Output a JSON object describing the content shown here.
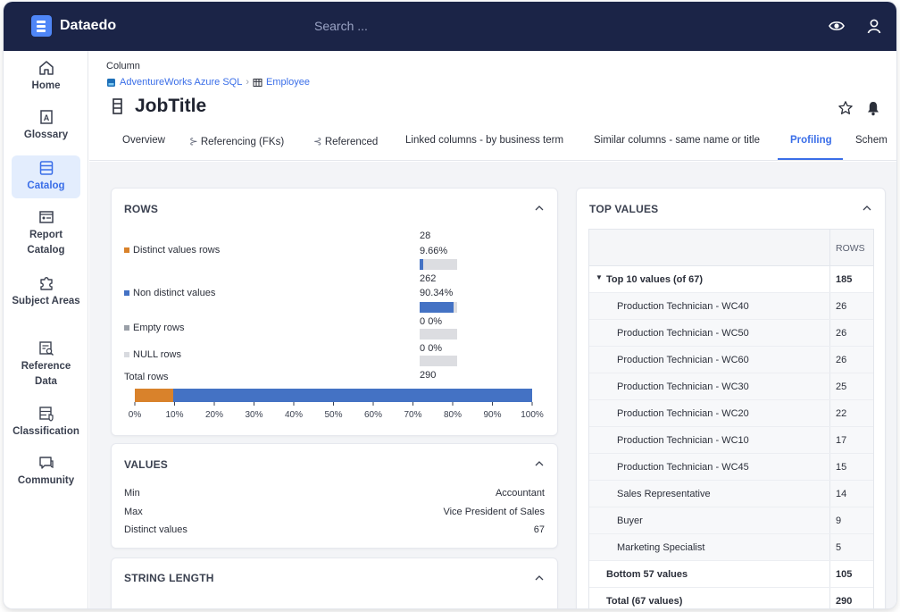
{
  "app": {
    "name": "Dataedo"
  },
  "search": {
    "placeholder": "Search ..."
  },
  "sidebar": {
    "items": [
      {
        "label": "Home",
        "icon": "home-icon"
      },
      {
        "label": "Glossary",
        "icon": "glossary-icon"
      },
      {
        "label": "Catalog",
        "icon": "catalog-icon"
      },
      {
        "label": "Report Catalog",
        "icon": "report-icon"
      },
      {
        "label": "Subject Areas",
        "icon": "puzzle-icon"
      },
      {
        "label": "Reference Data",
        "icon": "reference-data-icon"
      },
      {
        "label": "Classification",
        "icon": "classification-icon"
      },
      {
        "label": "Community",
        "icon": "chat-icon"
      }
    ],
    "active": "Catalog"
  },
  "page": {
    "object_type": "Column",
    "breadcrumb": [
      "AdventureWorks Azure SQL",
      "Employee"
    ],
    "title": "JobTitle"
  },
  "tabs": [
    "Overview",
    "Referencing (FKs)",
    "Referenced",
    "Linked columns - by business term",
    "Similar columns - same name or title",
    "Profiling",
    "Schem"
  ],
  "active_tab": "Profiling",
  "rows_card": {
    "title": "ROWS",
    "items": [
      {
        "label": "Distinct values rows",
        "count": "28",
        "pct": "9.66%",
        "fraction": 0.0966,
        "color": "#d9822b"
      },
      {
        "label": "Non distinct values",
        "count": "262",
        "pct": "90.34%",
        "fraction": 0.9034,
        "color": "#4472c4"
      },
      {
        "label": "Empty rows",
        "count": "0",
        "pct": "0%",
        "fraction": 0,
        "color": "#9aa0a8"
      },
      {
        "label": "NULL rows",
        "count": "0",
        "pct": "0%",
        "fraction": 0,
        "color": "#d8dadf"
      }
    ],
    "total_label": "Total rows",
    "total_value": "290",
    "axis_ticks": [
      "0%",
      "10%",
      "20%",
      "30%",
      "40%",
      "50%",
      "60%",
      "70%",
      "80%",
      "90%",
      "100%"
    ]
  },
  "values_card": {
    "title": "VALUES",
    "rows": [
      {
        "label": "Min",
        "value": "Accountant"
      },
      {
        "label": "Max",
        "value": "Vice President of Sales"
      },
      {
        "label": "Distinct values",
        "value": "67"
      }
    ]
  },
  "string_card": {
    "title": "STRING LENGTH"
  },
  "top_values": {
    "title": "TOP VALUES",
    "column_header": "ROWS",
    "group_label": "Top 10 values (of 67)",
    "group_value": "185",
    "rows": [
      {
        "name": "Production Technician - WC40",
        "value": "26"
      },
      {
        "name": "Production Technician - WC50",
        "value": "26"
      },
      {
        "name": "Production Technician - WC60",
        "value": "26"
      },
      {
        "name": "Production Technician - WC30",
        "value": "25"
      },
      {
        "name": "Production Technician - WC20",
        "value": "22"
      },
      {
        "name": "Production Technician - WC10",
        "value": "17"
      },
      {
        "name": "Production Technician - WC45",
        "value": "15"
      },
      {
        "name": "Sales Representative",
        "value": "14"
      },
      {
        "name": "Buyer",
        "value": "9"
      },
      {
        "name": "Marketing Specialist",
        "value": "5"
      }
    ],
    "bottom_label": "Bottom 57 values",
    "bottom_value": "105",
    "total_label": "Total (67 values)",
    "total_value": "290"
  },
  "chart_data": {
    "type": "bar",
    "categories": [
      "Total rows"
    ],
    "series": [
      {
        "name": "Distinct values rows",
        "values": [
          9.66
        ]
      },
      {
        "name": "Non distinct values",
        "values": [
          90.34
        ]
      }
    ],
    "xlim": [
      0,
      100
    ],
    "stacked": true,
    "orientation": "horizontal"
  }
}
